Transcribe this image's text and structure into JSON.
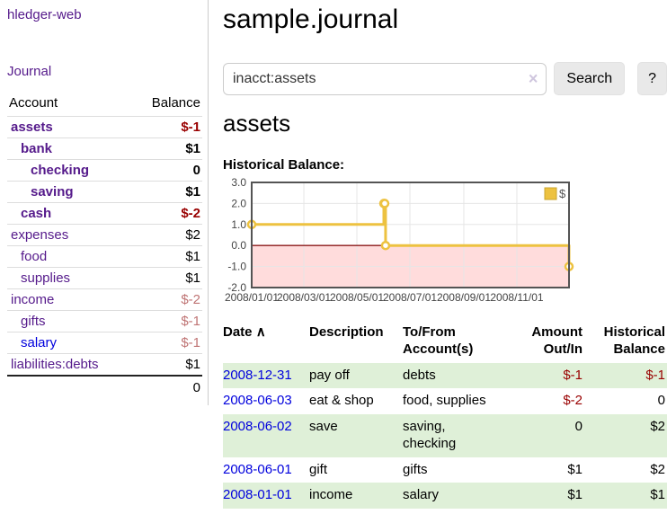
{
  "app": {
    "brand": "hledger-web",
    "nav_journal": "Journal"
  },
  "sidebar": {
    "headers": {
      "account": "Account",
      "balance": "Balance"
    },
    "rows": [
      {
        "name": "assets",
        "indent": 1,
        "bold": true,
        "color": "purple",
        "balance": "$-1",
        "balance_class": "neg-strong"
      },
      {
        "name": "bank",
        "indent": 2,
        "bold": true,
        "color": "purple",
        "balance": "$1",
        "balance_class": ""
      },
      {
        "name": "checking",
        "indent": 3,
        "bold": true,
        "color": "purple",
        "balance": "0",
        "balance_class": ""
      },
      {
        "name": "saving",
        "indent": 3,
        "bold": true,
        "color": "purple",
        "balance": "$1",
        "balance_class": ""
      },
      {
        "name": "cash",
        "indent": 2,
        "bold": true,
        "color": "purple",
        "balance": "$-2",
        "balance_class": "neg-strong"
      },
      {
        "name": "expenses",
        "indent": 1,
        "bold": false,
        "color": "purple",
        "balance": "$2",
        "balance_class": ""
      },
      {
        "name": "food",
        "indent": 2,
        "bold": false,
        "color": "purple",
        "balance": "$1",
        "balance_class": ""
      },
      {
        "name": "supplies",
        "indent": 2,
        "bold": false,
        "color": "purple",
        "balance": "$1",
        "balance_class": ""
      },
      {
        "name": "income",
        "indent": 1,
        "bold": false,
        "color": "purple",
        "balance": "$-2",
        "balance_class": "neg-muted"
      },
      {
        "name": "gifts",
        "indent": 2,
        "bold": false,
        "color": "purple",
        "balance": "$-1",
        "balance_class": "neg-muted"
      },
      {
        "name": "salary",
        "indent": 2,
        "bold": false,
        "color": "blue",
        "balance": "$-1",
        "balance_class": "neg-muted"
      },
      {
        "name": "liabilities:debts",
        "indent": 1,
        "bold": false,
        "color": "purple",
        "balance": "$1",
        "balance_class": ""
      }
    ],
    "total": "0"
  },
  "main": {
    "title": "sample.journal",
    "search": {
      "value": "inacct:assets",
      "clear_icon": "×",
      "button_label": "Search",
      "help_label": "?"
    },
    "account_heading": "assets",
    "register": {
      "headers": {
        "date": "Date",
        "sort_icon": "∧",
        "description": "Description",
        "accounts": "To/From Account(s)",
        "amount": "Amount Out/In",
        "balance": "Historical Balance"
      },
      "rows": [
        {
          "date": "2008-12-31",
          "description": "pay off",
          "accounts": "debts",
          "amount": "$-1",
          "balance": "$-1"
        },
        {
          "date": "2008-06-03",
          "description": "eat & shop",
          "accounts": "food, supplies",
          "amount": "$-2",
          "balance": "0"
        },
        {
          "date": "2008-06-02",
          "description": "save",
          "accounts": "saving, checking",
          "amount": "0",
          "balance": "$2"
        },
        {
          "date": "2008-06-01",
          "description": "gift",
          "accounts": "gifts",
          "amount": "$1",
          "balance": "$2"
        },
        {
          "date": "2008-01-01",
          "description": "income",
          "accounts": "salary",
          "amount": "$1",
          "balance": "$1"
        }
      ]
    }
  },
  "chart_data": {
    "type": "line",
    "title": "Historical Balance:",
    "step": true,
    "x_ticks": [
      "2008/01/01",
      "2008/03/01",
      "2008/05/01",
      "2008/07/01",
      "2008/09/01",
      "2008/11/01"
    ],
    "y_ticks": [
      3,
      2,
      1,
      0,
      -1,
      -2
    ],
    "ylim": [
      -2,
      3
    ],
    "xlim": [
      "2008-01-01",
      "2008-12-31"
    ],
    "series": [
      {
        "name": "$",
        "color": "#edc240",
        "points": [
          [
            "2008-01-01",
            1
          ],
          [
            "2008-06-01",
            2
          ],
          [
            "2008-06-02",
            2
          ],
          [
            "2008-06-03",
            0
          ],
          [
            "2008-12-31",
            -1
          ]
        ]
      }
    ],
    "legend": {
      "label": "$",
      "position": "top-right"
    },
    "negative_region_fill": "#ffdcdc",
    "zero_line_color": "#8b1a1a",
    "grid_color": "#e6e6e6",
    "border_color": "#545454"
  },
  "colors": {
    "link_purple": "#551a8b",
    "link_blue": "#0000dd",
    "negative_strong": "#990000",
    "negative_muted": "#bf7474",
    "stripe_green": "#dff0d8",
    "chart_line": "#edc240"
  }
}
